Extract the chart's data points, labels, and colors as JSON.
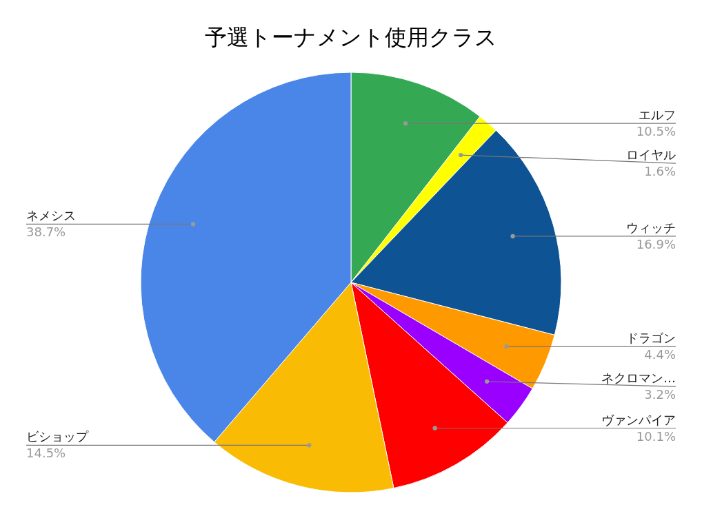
{
  "chart_data": {
    "type": "pie",
    "title": "予選トーナメント使用クラス",
    "categories": [
      "エルフ",
      "ロイヤル",
      "ウィッチ",
      "ドラゴン",
      "ネクロマン…",
      "ヴァンパイア",
      "ビショップ",
      "ネメシス"
    ],
    "values": [
      10.5,
      1.6,
      16.9,
      4.4,
      3.2,
      10.1,
      14.5,
      38.7
    ],
    "value_labels": [
      "10.5%",
      "1.6%",
      "16.9%",
      "4.4%",
      "3.2%",
      "10.1%",
      "14.5%",
      "38.7%"
    ],
    "colors": [
      "#34a853",
      "#ffff00",
      "#0e5394",
      "#ff9900",
      "#9900ff",
      "#ff0000",
      "#f9bb04",
      "#4a86e8"
    ]
  }
}
